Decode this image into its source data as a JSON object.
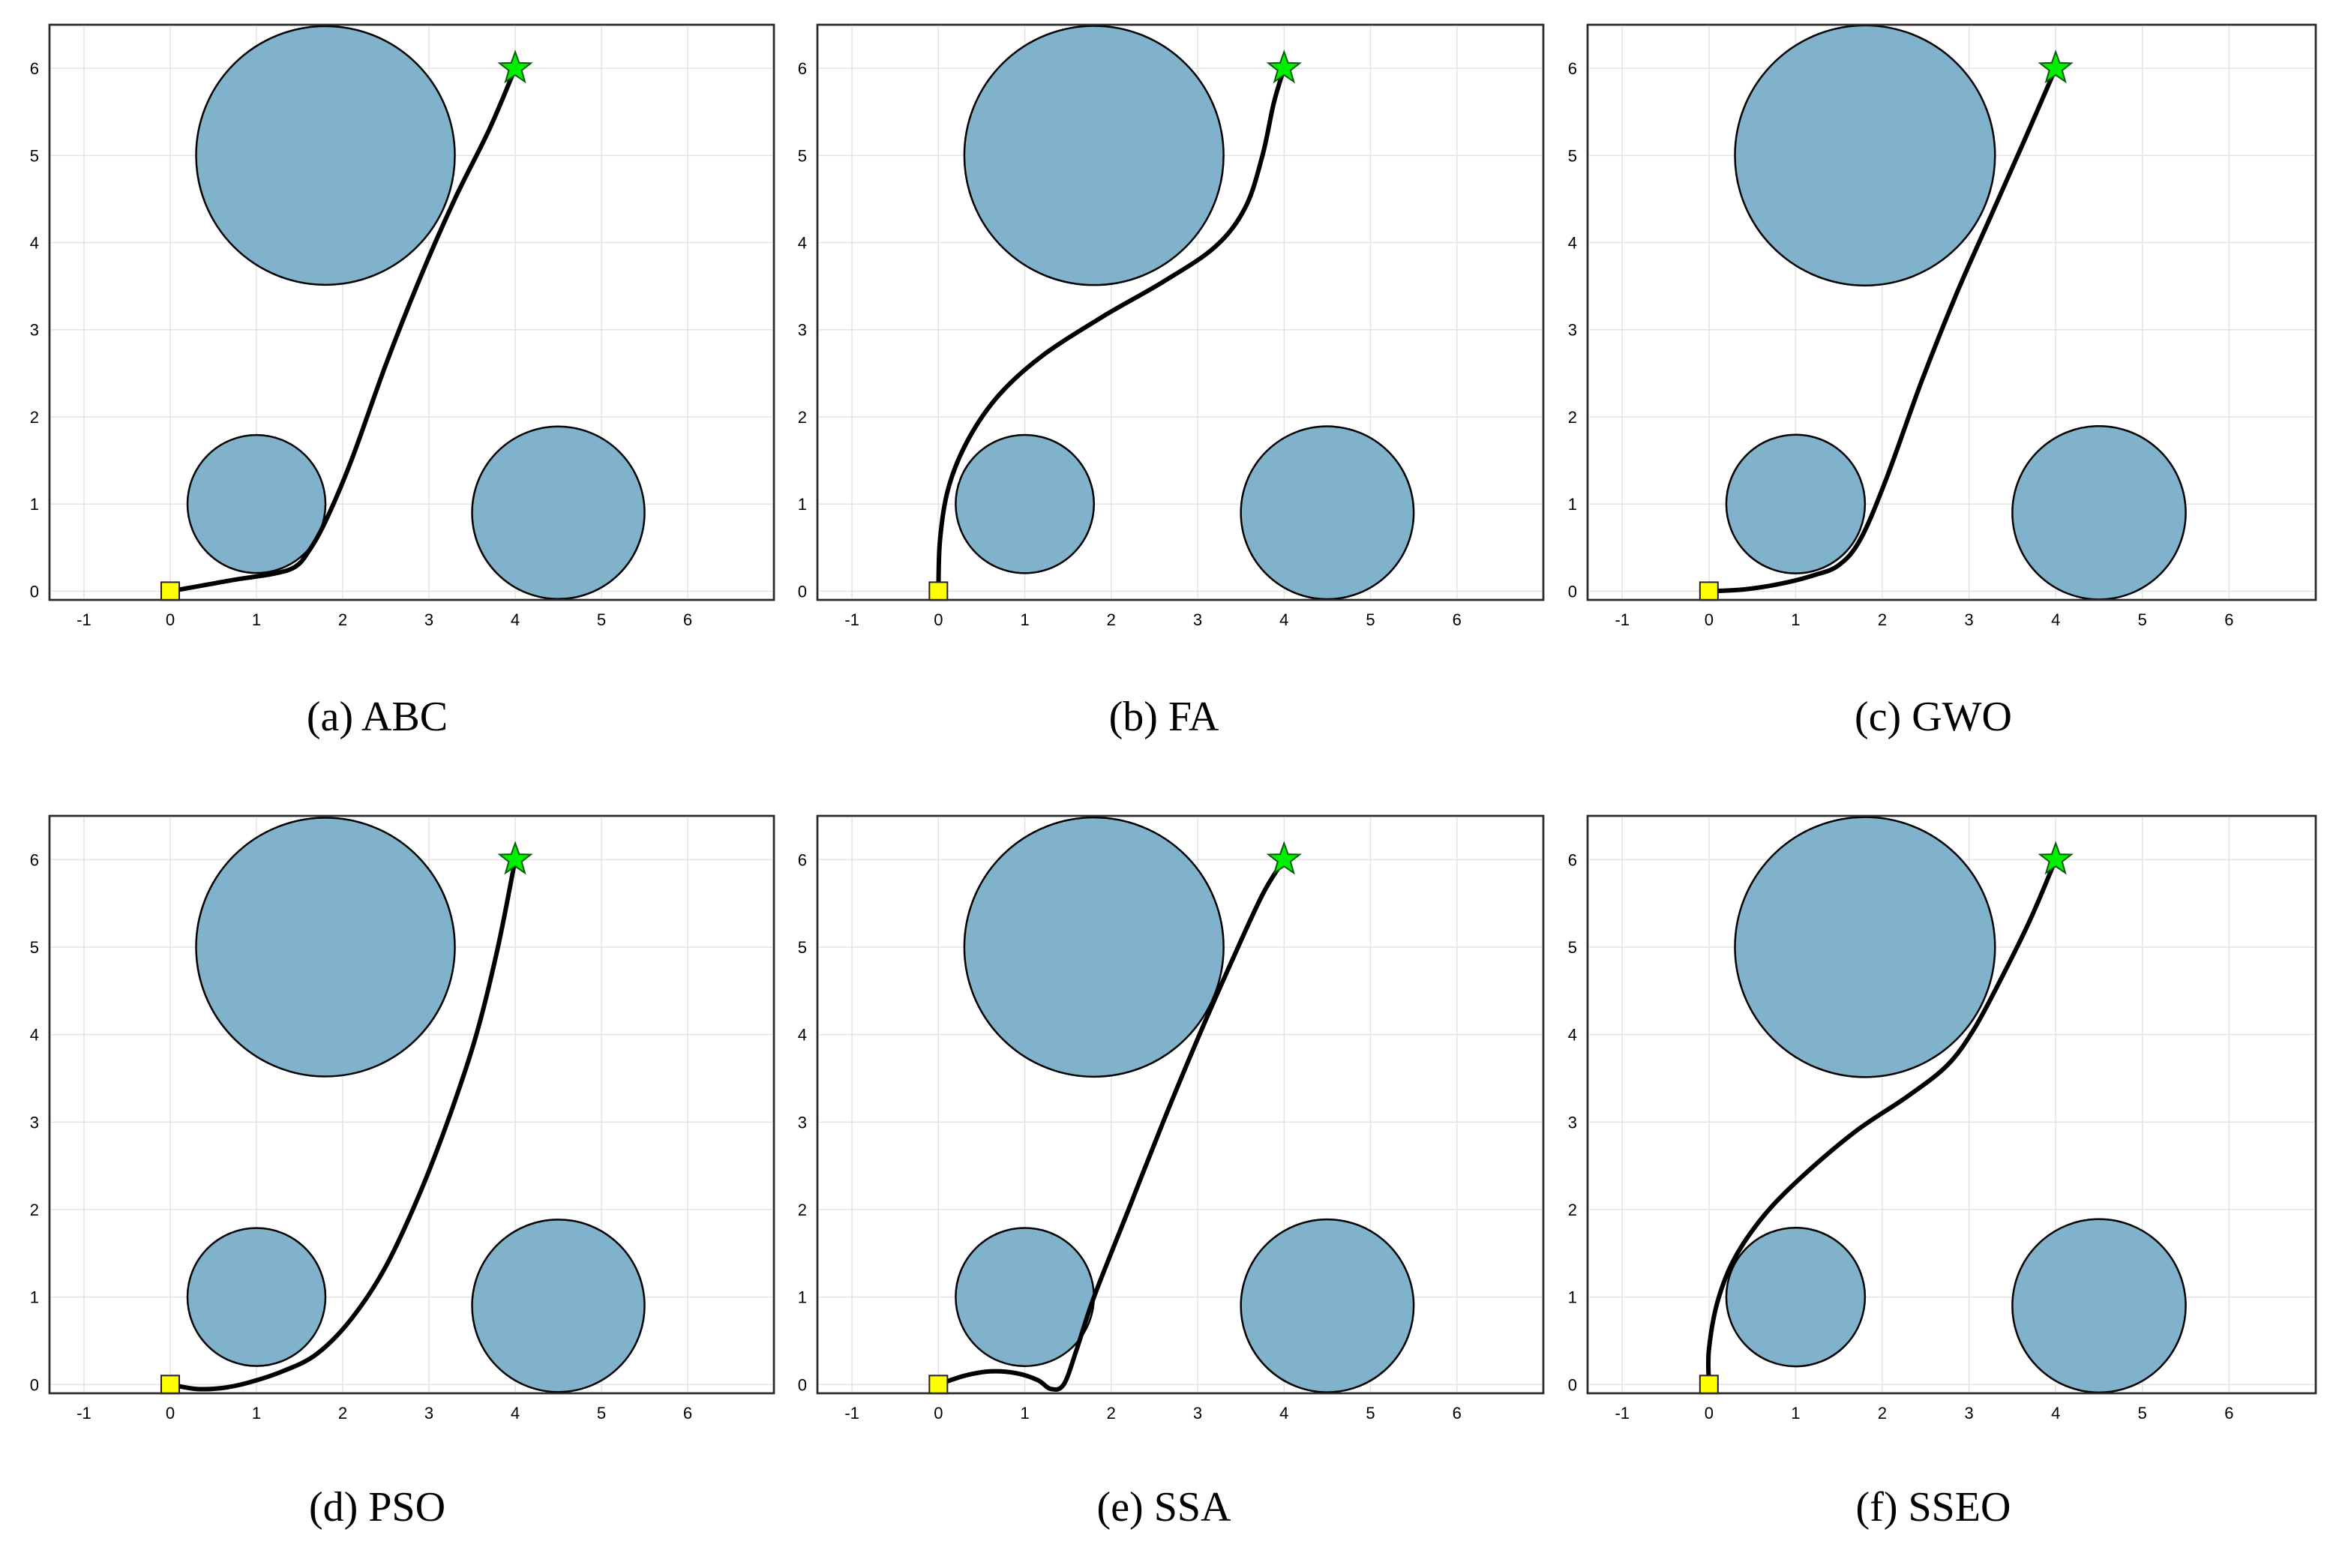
{
  "figure_description_color": {
    "obstacle": "#80b2cb",
    "path": "#000000",
    "start": "#ffff00",
    "goal": "#00ee00",
    "grid": "#e3e3e3"
  },
  "chart_data": [
    {
      "type": "line",
      "caption": "(a) ABC",
      "xlim": [
        -1.4,
        7.0
      ],
      "ylim": [
        -0.1,
        6.5
      ],
      "xticks": [
        -1,
        0,
        1,
        2,
        3,
        4,
        5,
        6
      ],
      "yticks": [
        0,
        1,
        2,
        3,
        4,
        5,
        6
      ],
      "grid": true,
      "obstacles": [
        {
          "cx": 1.8,
          "cy": 5.0,
          "r": 1.5
        },
        {
          "cx": 1.0,
          "cy": 1.0,
          "r": 0.8
        },
        {
          "cx": 4.5,
          "cy": 0.9,
          "r": 1.0
        }
      ],
      "start": [
        0,
        0
      ],
      "goal": [
        4,
        6
      ],
      "path": [
        [
          0,
          0
        ],
        [
          0.4,
          0.07
        ],
        [
          0.8,
          0.14
        ],
        [
          1.2,
          0.2
        ],
        [
          1.45,
          0.28
        ],
        [
          1.6,
          0.45
        ],
        [
          1.8,
          0.8
        ],
        [
          2.1,
          1.5
        ],
        [
          2.5,
          2.6
        ],
        [
          2.9,
          3.6
        ],
        [
          3.3,
          4.5
        ],
        [
          3.7,
          5.3
        ],
        [
          4,
          6
        ]
      ]
    },
    {
      "type": "line",
      "caption": "(b) FA",
      "xlim": [
        -1.4,
        7.0
      ],
      "ylim": [
        -0.1,
        6.5
      ],
      "xticks": [
        -1,
        0,
        1,
        2,
        3,
        4,
        5,
        6
      ],
      "yticks": [
        0,
        1,
        2,
        3,
        4,
        5,
        6
      ],
      "grid": true,
      "obstacles": [
        {
          "cx": 1.8,
          "cy": 5.0,
          "r": 1.5
        },
        {
          "cx": 1.0,
          "cy": 1.0,
          "r": 0.8
        },
        {
          "cx": 4.5,
          "cy": 0.9,
          "r": 1.0
        }
      ],
      "start": [
        0,
        0
      ],
      "goal": [
        4,
        6
      ],
      "path": [
        [
          0,
          0
        ],
        [
          0.02,
          0.6
        ],
        [
          0.12,
          1.2
        ],
        [
          0.35,
          1.75
        ],
        [
          0.7,
          2.25
        ],
        [
          1.2,
          2.7
        ],
        [
          1.9,
          3.15
        ],
        [
          2.6,
          3.55
        ],
        [
          3.2,
          3.95
        ],
        [
          3.55,
          4.4
        ],
        [
          3.75,
          5.0
        ],
        [
          3.88,
          5.6
        ],
        [
          4,
          6
        ]
      ]
    },
    {
      "type": "line",
      "caption": "(c) GWO",
      "xlim": [
        -1.4,
        7.0
      ],
      "ylim": [
        -0.1,
        6.5
      ],
      "xticks": [
        -1,
        0,
        1,
        2,
        3,
        4,
        5,
        6
      ],
      "yticks": [
        0,
        1,
        2,
        3,
        4,
        5,
        6
      ],
      "grid": true,
      "obstacles": [
        {
          "cx": 1.8,
          "cy": 5.0,
          "r": 1.5
        },
        {
          "cx": 1.0,
          "cy": 1.0,
          "r": 0.8
        },
        {
          "cx": 4.5,
          "cy": 0.9,
          "r": 1.0
        }
      ],
      "start": [
        0,
        0
      ],
      "goal": [
        4,
        6
      ],
      "path": [
        [
          0,
          0
        ],
        [
          0.4,
          0.02
        ],
        [
          0.8,
          0.08
        ],
        [
          1.2,
          0.18
        ],
        [
          1.5,
          0.3
        ],
        [
          1.75,
          0.6
        ],
        [
          2.05,
          1.3
        ],
        [
          2.45,
          2.4
        ],
        [
          2.85,
          3.4
        ],
        [
          3.25,
          4.3
        ],
        [
          3.65,
          5.2
        ],
        [
          4,
          6
        ]
      ]
    },
    {
      "type": "line",
      "caption": "(d) PSO",
      "xlim": [
        -1.4,
        7.0
      ],
      "ylim": [
        -0.1,
        6.5
      ],
      "xticks": [
        -1,
        0,
        1,
        2,
        3,
        4,
        5,
        6
      ],
      "yticks": [
        0,
        1,
        2,
        3,
        4,
        5,
        6
      ],
      "grid": true,
      "obstacles": [
        {
          "cx": 1.8,
          "cy": 5.0,
          "r": 1.5
        },
        {
          "cx": 1.0,
          "cy": 1.0,
          "r": 0.8
        },
        {
          "cx": 4.5,
          "cy": 0.9,
          "r": 1.0
        }
      ],
      "start": [
        0,
        0
      ],
      "goal": [
        4,
        6
      ],
      "path": [
        [
          0,
          0
        ],
        [
          0.3,
          -0.05
        ],
        [
          0.6,
          -0.04
        ],
        [
          0.9,
          0.02
        ],
        [
          1.3,
          0.15
        ],
        [
          1.7,
          0.35
        ],
        [
          2.1,
          0.75
        ],
        [
          2.5,
          1.35
        ],
        [
          2.9,
          2.2
        ],
        [
          3.25,
          3.1
        ],
        [
          3.55,
          4.0
        ],
        [
          3.8,
          5.0
        ],
        [
          4,
          6
        ]
      ]
    },
    {
      "type": "line",
      "caption": "(e) SSA",
      "xlim": [
        -1.4,
        7.0
      ],
      "ylim": [
        -0.1,
        6.5
      ],
      "xticks": [
        -1,
        0,
        1,
        2,
        3,
        4,
        5,
        6
      ],
      "yticks": [
        0,
        1,
        2,
        3,
        4,
        5,
        6
      ],
      "grid": true,
      "obstacles": [
        {
          "cx": 1.8,
          "cy": 5.0,
          "r": 1.5
        },
        {
          "cx": 1.0,
          "cy": 1.0,
          "r": 0.8
        },
        {
          "cx": 4.5,
          "cy": 0.9,
          "r": 1.0
        }
      ],
      "start": [
        0,
        0
      ],
      "goal": [
        4,
        6
      ],
      "path": [
        [
          0,
          0
        ],
        [
          0.3,
          0.1
        ],
        [
          0.6,
          0.15
        ],
        [
          0.9,
          0.13
        ],
        [
          1.15,
          0.05
        ],
        [
          1.3,
          -0.05
        ],
        [
          1.45,
          0.0
        ],
        [
          1.6,
          0.4
        ],
        [
          1.8,
          1.0
        ],
        [
          2.2,
          2.0
        ],
        [
          2.6,
          3.0
        ],
        [
          3.0,
          3.95
        ],
        [
          3.4,
          4.85
        ],
        [
          3.75,
          5.6
        ],
        [
          4,
          6
        ]
      ]
    },
    {
      "type": "line",
      "caption": "(f) SSEO",
      "xlim": [
        -1.4,
        7.0
      ],
      "ylim": [
        -0.1,
        6.5
      ],
      "xticks": [
        -1,
        0,
        1,
        2,
        3,
        4,
        5,
        6
      ],
      "yticks": [
        0,
        1,
        2,
        3,
        4,
        5,
        6
      ],
      "grid": true,
      "obstacles": [
        {
          "cx": 1.8,
          "cy": 5.0,
          "r": 1.5
        },
        {
          "cx": 1.0,
          "cy": 1.0,
          "r": 0.8
        },
        {
          "cx": 4.5,
          "cy": 0.9,
          "r": 1.0
        }
      ],
      "start": [
        0,
        0
      ],
      "goal": [
        4,
        6
      ],
      "path": [
        [
          0,
          0
        ],
        [
          0.0,
          0.4
        ],
        [
          0.1,
          0.95
        ],
        [
          0.3,
          1.45
        ],
        [
          0.65,
          1.95
        ],
        [
          1.1,
          2.4
        ],
        [
          1.7,
          2.9
        ],
        [
          2.3,
          3.3
        ],
        [
          2.75,
          3.65
        ],
        [
          3.05,
          4.05
        ],
        [
          3.35,
          4.6
        ],
        [
          3.7,
          5.3
        ],
        [
          4,
          6
        ]
      ]
    }
  ]
}
